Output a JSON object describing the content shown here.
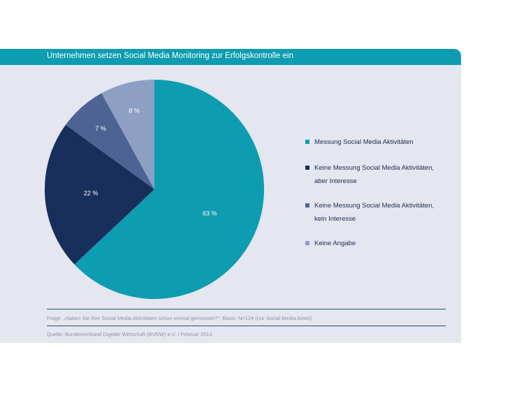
{
  "header": {
    "title": "Unternehmen setzen Social Media Monitoring zur Erfolgskontrolle ein"
  },
  "chart_data": {
    "type": "pie",
    "title": "Unternehmen setzen Social Media Monitoring zur Erfolgskontrolle ein",
    "categories": [
      "Messung Social Media Aktivitäten",
      "Keine Messung Social Media Aktivitäten, aber Interesse",
      "Keine Messung Social Media Aktivitäten, kein Interesse",
      "Keine Angabe"
    ],
    "values": [
      63,
      22,
      7,
      8
    ],
    "labels": [
      "63 %",
      "22 %",
      "7 %",
      "8 %"
    ],
    "colors": [
      "#0e9cb0",
      "#182e5b",
      "#4d6393",
      "#8e9fc4"
    ],
    "legend_position": "right"
  },
  "legend": {
    "items": [
      {
        "line1": "Messung Social Media Aktivitäten",
        "line2": ""
      },
      {
        "line1": "Keine Messung Social Media Aktivitäten,",
        "line2": "aber Interesse"
      },
      {
        "line1": "Keine Messung Social Media Aktivitäten,",
        "line2": "kein Interesse"
      },
      {
        "line1": "Keine Angabe",
        "line2": ""
      }
    ]
  },
  "footer": {
    "question": "Frage: „Haben Sie Ihre Social Media Aktivitäten schon einmal gemessen?“; Basis: N=124 (nur Social Media Anteil)",
    "source": "Quelle: Bundesverband Digitale Wirtschaft (BVDW) e.V. / Februar 2013"
  }
}
